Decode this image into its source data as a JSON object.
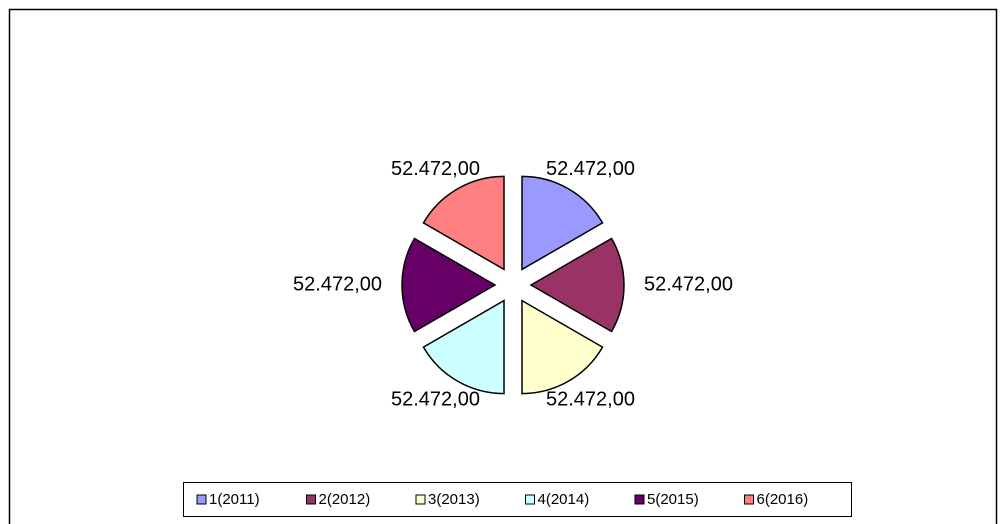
{
  "chart_data": {
    "type": "pie",
    "categories": [
      "1(2011)",
      "2(2012)",
      "3(2013)",
      "4(2014)",
      "5(2015)",
      "6(2016)"
    ],
    "values": [
      52472,
      52472,
      52472,
      52472,
      52472,
      52472
    ],
    "value_labels": [
      "52.472,00",
      "52.472,00",
      "52.472,00",
      "52.472,00",
      "52.472,00",
      "52.472,00"
    ],
    "colors": [
      "#9999ff",
      "#993366",
      "#ffffcc",
      "#ccffff",
      "#660066",
      "#ff8080"
    ],
    "legend": "bottom"
  }
}
